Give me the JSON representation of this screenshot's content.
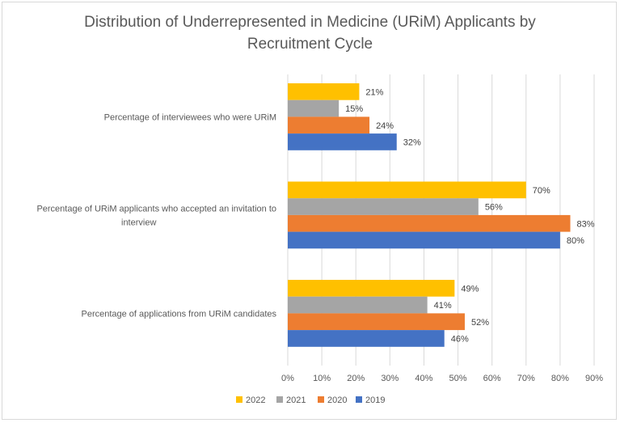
{
  "chart_data": {
    "type": "bar",
    "orientation": "horizontal",
    "title": "Distribution of Underrepresented in Medicine (URiM) Applicants by Recruitment Cycle",
    "categories": [
      "Percentage of interviewees who were URiM",
      "Percentage of URiM applicants who accepted an invitation to interview",
      "Percentage of applications from URiM candidates"
    ],
    "category_lines": [
      [
        "Percentage of interviewees who were URiM"
      ],
      [
        "Percentage of URiM applicants who accepted an invitation to",
        "interview"
      ],
      [
        "Percentage of applications from URiM candidates"
      ]
    ],
    "series": [
      {
        "name": "2022",
        "color": "#FFC000",
        "values": [
          21,
          70,
          49
        ]
      },
      {
        "name": "2021",
        "color": "#A5A5A5",
        "values": [
          15,
          56,
          41
        ]
      },
      {
        "name": "2020",
        "color": "#ED7D31",
        "values": [
          24,
          83,
          52
        ]
      },
      {
        "name": "2019",
        "color": "#4472C4",
        "values": [
          32,
          80,
          46
        ]
      }
    ],
    "value_suffix": "%",
    "xlim": [
      0,
      90
    ],
    "xticks": [
      0,
      10,
      20,
      30,
      40,
      50,
      60,
      70,
      80,
      90
    ],
    "xtick_labels": [
      "0%",
      "10%",
      "20%",
      "30%",
      "40%",
      "50%",
      "60%",
      "70%",
      "80%",
      "90%"
    ],
    "grid": true,
    "legend_position": "bottom"
  }
}
